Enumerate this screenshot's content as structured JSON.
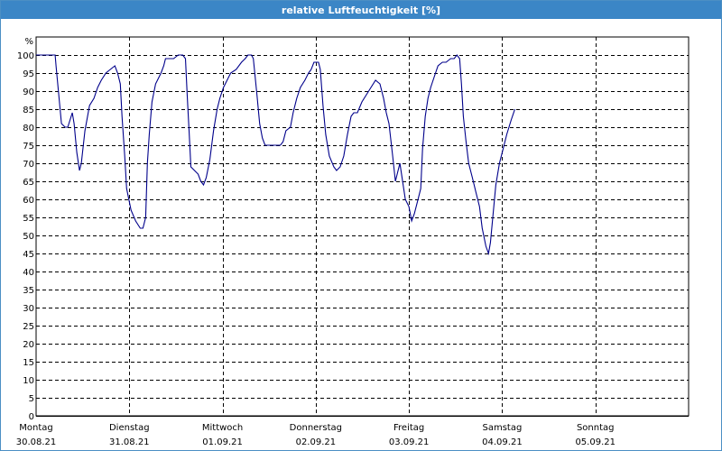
{
  "window": {
    "title": "relative Luftfeuchtigkeit [%]"
  },
  "chart_data": {
    "type": "line",
    "title": "relative Luftfeuchtigkeit [%]",
    "ylabel": "%",
    "xlabel": "",
    "ylim": [
      0,
      100
    ],
    "y_ticks": [
      0,
      5,
      10,
      15,
      20,
      25,
      30,
      35,
      40,
      45,
      50,
      55,
      60,
      65,
      70,
      75,
      80,
      85,
      90,
      95,
      100
    ],
    "x_range_days": [
      0,
      7
    ],
    "x_tick_labels": [
      {
        "day": "Montag",
        "date": "30.08.21"
      },
      {
        "day": "Dienstag",
        "date": "31.08.21"
      },
      {
        "day": "Mittwoch",
        "date": "01.09.21"
      },
      {
        "day": "Donnerstag",
        "date": "02.09.21"
      },
      {
        "day": "Freitag",
        "date": "03.09.21"
      },
      {
        "day": "Samstag",
        "date": "04.09.21"
      },
      {
        "day": "Sonntag",
        "date": "05.09.21"
      }
    ],
    "grid": true,
    "line_color": "#00008b",
    "series": [
      {
        "name": "",
        "points": [
          [
            0.0,
            100
          ],
          [
            0.107,
            100
          ],
          [
            0.175,
            100
          ],
          [
            0.204,
            100
          ],
          [
            0.214,
            97
          ],
          [
            0.243,
            89
          ],
          [
            0.272,
            81
          ],
          [
            0.311,
            80
          ],
          [
            0.34,
            80
          ],
          [
            0.388,
            84
          ],
          [
            0.408,
            81
          ],
          [
            0.437,
            73
          ],
          [
            0.466,
            68
          ],
          [
            0.485,
            70
          ],
          [
            0.524,
            79
          ],
          [
            0.573,
            86
          ],
          [
            0.621,
            88
          ],
          [
            0.66,
            91
          ],
          [
            0.699,
            93
          ],
          [
            0.748,
            95
          ],
          [
            0.796,
            96
          ],
          [
            0.845,
            97
          ],
          [
            0.874,
            95
          ],
          [
            0.903,
            92
          ],
          [
            0.922,
            83
          ],
          [
            0.951,
            72
          ],
          [
            0.971,
            63
          ],
          [
            1.019,
            57
          ],
          [
            1.068,
            54
          ],
          [
            1.117,
            52
          ],
          [
            1.146,
            52
          ],
          [
            1.175,
            55
          ],
          [
            1.194,
            70
          ],
          [
            1.214,
            78
          ],
          [
            1.243,
            87
          ],
          [
            1.282,
            92
          ],
          [
            1.34,
            95
          ],
          [
            1.369,
            97
          ],
          [
            1.388,
            99
          ],
          [
            1.437,
            99
          ],
          [
            1.456,
            99
          ],
          [
            1.476,
            99
          ],
          [
            1.524,
            100
          ],
          [
            1.553,
            100
          ],
          [
            1.573,
            100
          ],
          [
            1.602,
            99
          ],
          [
            1.621,
            89
          ],
          [
            1.641,
            79
          ],
          [
            1.66,
            69
          ],
          [
            1.699,
            68
          ],
          [
            1.738,
            67
          ],
          [
            1.767,
            65
          ],
          [
            1.796,
            64
          ],
          [
            1.825,
            66
          ],
          [
            1.864,
            71
          ],
          [
            1.903,
            79
          ],
          [
            1.942,
            85
          ],
          [
            1.971,
            88
          ],
          [
            2.01,
            91
          ],
          [
            2.049,
            93
          ],
          [
            2.087,
            95
          ],
          [
            2.146,
            96
          ],
          [
            2.204,
            98
          ],
          [
            2.243,
            99
          ],
          [
            2.272,
            100
          ],
          [
            2.311,
            100
          ],
          [
            2.33,
            99
          ],
          [
            2.369,
            89
          ],
          [
            2.398,
            81
          ],
          [
            2.427,
            77
          ],
          [
            2.456,
            75
          ],
          [
            2.505,
            75
          ],
          [
            2.553,
            75
          ],
          [
            2.621,
            75
          ],
          [
            2.65,
            76
          ],
          [
            2.68,
            79
          ],
          [
            2.728,
            80
          ],
          [
            2.757,
            84
          ],
          [
            2.796,
            88
          ],
          [
            2.835,
            91
          ],
          [
            2.883,
            93
          ],
          [
            2.922,
            95
          ],
          [
            2.951,
            96
          ],
          [
            2.981,
            98
          ],
          [
            3.029,
            98
          ],
          [
            3.049,
            96
          ],
          [
            3.078,
            86
          ],
          [
            3.107,
            78
          ],
          [
            3.146,
            72
          ],
          [
            3.194,
            69
          ],
          [
            3.223,
            68
          ],
          [
            3.262,
            69
          ],
          [
            3.301,
            72
          ],
          [
            3.34,
            78
          ],
          [
            3.379,
            83
          ],
          [
            3.408,
            84
          ],
          [
            3.447,
            84
          ],
          [
            3.495,
            87
          ],
          [
            3.544,
            89
          ],
          [
            3.592,
            91
          ],
          [
            3.641,
            93
          ],
          [
            3.689,
            92
          ],
          [
            3.728,
            88
          ],
          [
            3.757,
            84
          ],
          [
            3.786,
            81
          ],
          [
            3.825,
            72
          ],
          [
            3.854,
            65
          ],
          [
            3.883,
            68
          ],
          [
            3.903,
            70
          ],
          [
            3.932,
            65
          ],
          [
            3.961,
            60
          ],
          [
            4.0,
            58
          ],
          [
            4.029,
            54
          ],
          [
            4.058,
            56
          ],
          [
            4.097,
            60
          ],
          [
            4.126,
            63
          ],
          [
            4.146,
            74
          ],
          [
            4.175,
            83
          ],
          [
            4.204,
            88
          ],
          [
            4.233,
            91
          ],
          [
            4.272,
            94
          ],
          [
            4.311,
            97
          ],
          [
            4.359,
            98
          ],
          [
            4.398,
            98
          ],
          [
            4.447,
            99
          ],
          [
            4.485,
            99
          ],
          [
            4.515,
            100
          ],
          [
            4.544,
            99
          ],
          [
            4.563,
            92
          ],
          [
            4.583,
            83
          ],
          [
            4.612,
            76
          ],
          [
            4.641,
            70
          ],
          [
            4.68,
            66
          ],
          [
            4.718,
            62
          ],
          [
            4.757,
            58
          ],
          [
            4.786,
            52
          ],
          [
            4.825,
            47
          ],
          [
            4.854,
            45
          ],
          [
            4.874,
            48
          ],
          [
            4.903,
            56
          ],
          [
            4.932,
            64
          ],
          [
            4.971,
            70
          ],
          [
            5.01,
            74
          ],
          [
            5.049,
            78
          ],
          [
            5.097,
            82
          ],
          [
            5.136,
            85
          ]
        ]
      }
    ]
  }
}
